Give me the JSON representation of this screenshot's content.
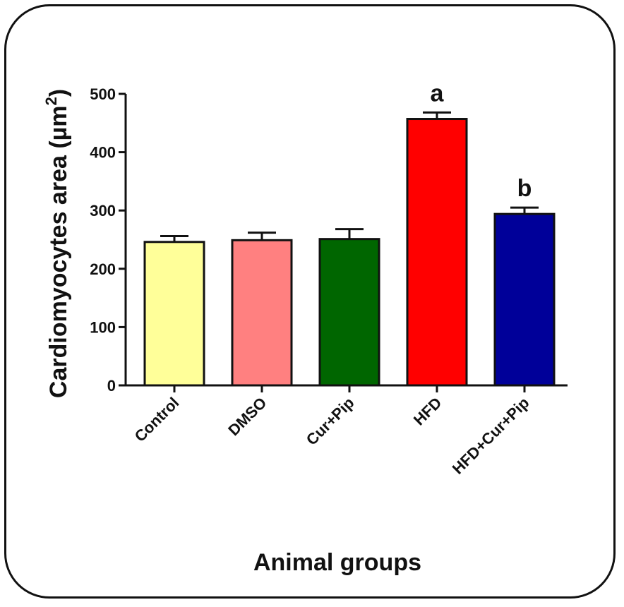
{
  "chart_data": {
    "type": "bar",
    "ylabel": "Cardiomyocytes area (µm",
    "ylabel_superscript": "2",
    "ylabel_suffix": ")",
    "xlabel": "Animal groups",
    "ylim": [
      0,
      500
    ],
    "yticks": [
      0,
      100,
      200,
      300,
      400,
      500
    ],
    "categories": [
      "Control",
      "DMSO",
      "Cur+Pip",
      "HFD",
      "HFD+Cur+Pip"
    ],
    "values": [
      246,
      249,
      251,
      457,
      294
    ],
    "errors": [
      10,
      13,
      17,
      11,
      11
    ],
    "colors": [
      "#FFFF99",
      "#FF8080",
      "#006600",
      "#FF0000",
      "#000099"
    ],
    "annotations": [
      "",
      "",
      "",
      "a",
      "b"
    ],
    "grid": false
  }
}
